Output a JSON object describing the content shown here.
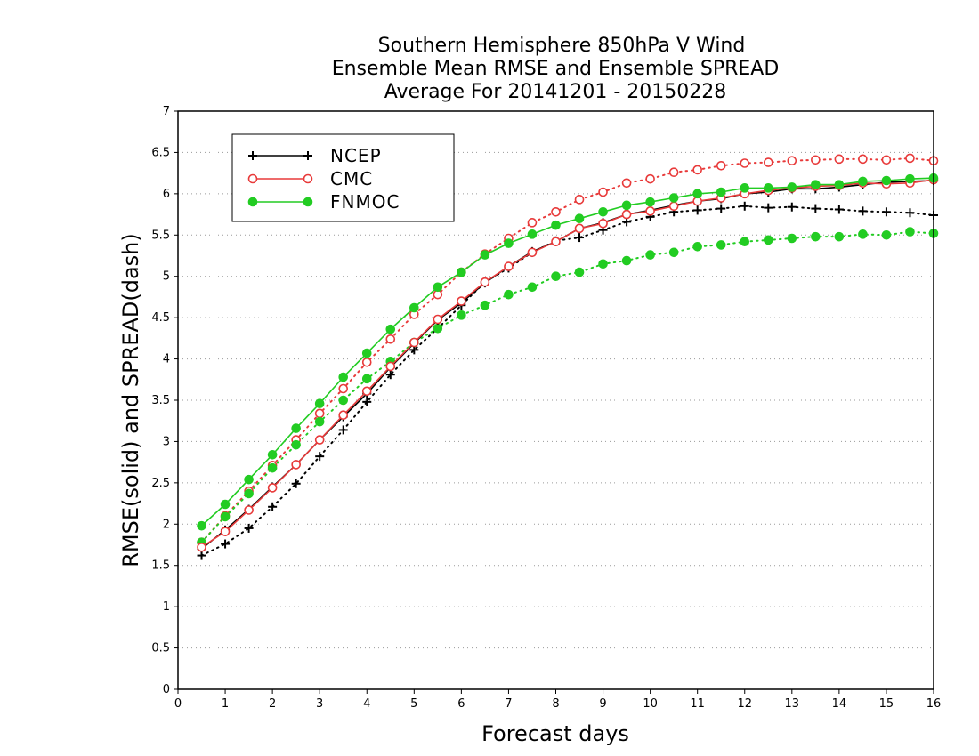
{
  "chart_data": {
    "type": "line",
    "title_lines": [
      "Southern Hemisphere 850hPa V Wind",
      "Ensemble Mean RMSE and Ensemble SPREAD",
      "Average For 20141201 - 20150228"
    ],
    "xlabel": "Forecast days",
    "ylabel": "RMSE(solid) and SPREAD(dash)",
    "xlim": [
      0,
      16
    ],
    "ylim": [
      0,
      7
    ],
    "xticks": [
      "0",
      "1",
      "2",
      "3",
      "4",
      "5",
      "6",
      "7",
      "8",
      "9",
      "10",
      "11",
      "12",
      "13",
      "14",
      "15",
      "16"
    ],
    "yticks": [
      "0",
      "0.5",
      "1",
      "1.5",
      "2",
      "2.5",
      "3",
      "3.5",
      "4",
      "4.5",
      "5",
      "5.5",
      "6",
      "6.5",
      "7"
    ],
    "grid": "horizontal dotted",
    "legend_position": "top-left",
    "legend": [
      "NCEP",
      "CMC",
      "FNMOC"
    ],
    "x": [
      0.5,
      1,
      1.5,
      2,
      2.5,
      3,
      3.5,
      4,
      4.5,
      5,
      5.5,
      6,
      6.5,
      7,
      7.5,
      8,
      8.5,
      9,
      9.5,
      10,
      10.5,
      11,
      11.5,
      12,
      12.5,
      13,
      13.5,
      14,
      14.5,
      15,
      15.5,
      16
    ],
    "series": [
      {
        "name": "NCEP",
        "kind": "rmse",
        "style": "solid",
        "marker": "plus",
        "color": "#000000",
        "values": [
          1.7,
          1.93,
          2.18,
          2.45,
          2.72,
          3.02,
          3.3,
          3.58,
          3.9,
          4.19,
          4.47,
          4.68,
          4.92,
          5.12,
          5.3,
          5.42,
          5.58,
          5.65,
          5.75,
          5.8,
          5.86,
          5.91,
          5.94,
          6.0,
          6.02,
          6.06,
          6.06,
          6.08,
          6.11,
          6.14,
          6.15,
          6.16
        ]
      },
      {
        "name": "NCEP",
        "kind": "spread",
        "style": "dotted",
        "marker": "plus",
        "color": "#000000",
        "values": [
          1.62,
          1.76,
          1.95,
          2.21,
          2.49,
          2.82,
          3.14,
          3.48,
          3.81,
          4.11,
          4.37,
          4.65,
          4.93,
          5.1,
          5.29,
          5.43,
          5.47,
          5.56,
          5.66,
          5.72,
          5.78,
          5.8,
          5.82,
          5.85,
          5.83,
          5.84,
          5.82,
          5.81,
          5.79,
          5.78,
          5.77,
          5.74
        ]
      },
      {
        "name": "CMC",
        "kind": "rmse",
        "style": "solid",
        "marker": "open-circle",
        "color": "#e83a3a",
        "values": [
          1.72,
          1.91,
          2.17,
          2.44,
          2.72,
          3.02,
          3.32,
          3.61,
          3.91,
          4.2,
          4.48,
          4.7,
          4.93,
          5.12,
          5.29,
          5.42,
          5.58,
          5.64,
          5.75,
          5.79,
          5.85,
          5.91,
          5.95,
          6.0,
          6.04,
          6.07,
          6.09,
          6.1,
          6.13,
          6.12,
          6.13,
          6.17
        ]
      },
      {
        "name": "CMC",
        "kind": "spread",
        "style": "dotted",
        "marker": "open-circle",
        "color": "#e83a3a",
        "values": [
          1.78,
          2.1,
          2.4,
          2.71,
          3.02,
          3.34,
          3.64,
          3.96,
          4.24,
          4.54,
          4.78,
          5.05,
          5.27,
          5.46,
          5.65,
          5.78,
          5.93,
          6.02,
          6.13,
          6.18,
          6.26,
          6.29,
          6.34,
          6.37,
          6.38,
          6.4,
          6.41,
          6.42,
          6.42,
          6.41,
          6.43,
          6.4
        ]
      },
      {
        "name": "FNMOC",
        "kind": "rmse",
        "style": "solid",
        "marker": "filled-circle",
        "color": "#22cc22",
        "values": [
          1.98,
          2.24,
          2.54,
          2.84,
          3.16,
          3.46,
          3.78,
          4.07,
          4.36,
          4.62,
          4.87,
          5.05,
          5.26,
          5.4,
          5.51,
          5.62,
          5.7,
          5.78,
          5.86,
          5.9,
          5.95,
          6.0,
          6.02,
          6.07,
          6.07,
          6.08,
          6.11,
          6.11,
          6.15,
          6.16,
          6.18,
          6.19
        ]
      },
      {
        "name": "FNMOC",
        "kind": "spread",
        "style": "dotted",
        "marker": "filled-circle",
        "color": "#22cc22",
        "values": [
          1.78,
          2.09,
          2.37,
          2.68,
          2.96,
          3.24,
          3.5,
          3.76,
          3.97,
          4.2,
          4.37,
          4.53,
          4.65,
          4.78,
          4.87,
          5.0,
          5.05,
          5.15,
          5.19,
          5.26,
          5.29,
          5.36,
          5.38,
          5.42,
          5.44,
          5.46,
          5.48,
          5.48,
          5.51,
          5.5,
          5.54,
          5.52
        ]
      }
    ]
  }
}
